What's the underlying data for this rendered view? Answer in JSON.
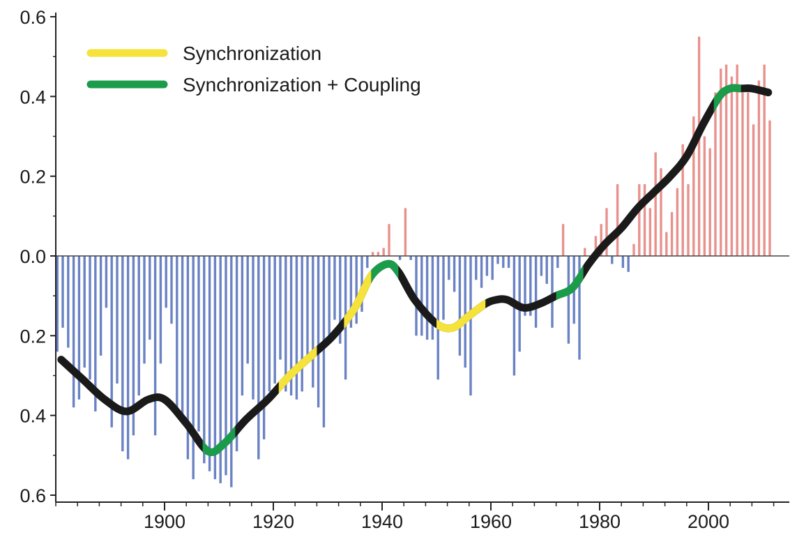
{
  "chart_data": {
    "type": "bar",
    "title": "",
    "xlabel": "",
    "ylabel": "",
    "xlim": [
      1880,
      2013
    ],
    "ylim": [
      -0.6,
      0.6
    ],
    "grid": false,
    "legend_position": "top-left",
    "x_tick_labels": [
      "1900",
      "1920",
      "1940",
      "1960",
      "1980",
      "2000"
    ],
    "y_tick_labels": [
      "0.6",
      "0.4",
      "0.2",
      "0.0",
      "0.2",
      "0.4",
      "0.6"
    ],
    "legend": [
      {
        "label": "Synchronization",
        "color": "#f5e23a"
      },
      {
        "label": "Synchronization + Coupling",
        "color": "#1a9c4a"
      }
    ],
    "colors": {
      "positive_bars": "#e8918c",
      "negative_bars": "#6a82c4",
      "smooth_curve": "#1a1a1a",
      "synchronization": "#f5e23a",
      "synchronization_coupling": "#1a9c4a"
    },
    "annual_anomalies": {
      "years": [
        1880,
        1881,
        1882,
        1883,
        1884,
        1885,
        1886,
        1887,
        1888,
        1889,
        1890,
        1891,
        1892,
        1893,
        1894,
        1895,
        1896,
        1897,
        1898,
        1899,
        1900,
        1901,
        1902,
        1903,
        1904,
        1905,
        1906,
        1907,
        1908,
        1909,
        1910,
        1911,
        1912,
        1913,
        1914,
        1915,
        1916,
        1917,
        1918,
        1919,
        1920,
        1921,
        1922,
        1923,
        1924,
        1925,
        1926,
        1927,
        1928,
        1929,
        1930,
        1931,
        1932,
        1933,
        1934,
        1935,
        1936,
        1937,
        1938,
        1939,
        1940,
        1941,
        1942,
        1943,
        1944,
        1945,
        1946,
        1947,
        1948,
        1949,
        1950,
        1951,
        1952,
        1953,
        1954,
        1955,
        1956,
        1957,
        1958,
        1959,
        1960,
        1961,
        1962,
        1963,
        1964,
        1965,
        1966,
        1967,
        1968,
        1969,
        1970,
        1971,
        1972,
        1973,
        1974,
        1975,
        1976,
        1977,
        1978,
        1979,
        1980,
        1981,
        1982,
        1983,
        1984,
        1985,
        1986,
        1987,
        1988,
        1989,
        1990,
        1991,
        1992,
        1993,
        1994,
        1995,
        1996,
        1997,
        1998,
        1999,
        2000,
        2001,
        2002,
        2003,
        2004,
        2005,
        2006,
        2007,
        2008,
        2009,
        2010,
        2011
      ],
      "values": [
        -0.24,
        -0.18,
        -0.23,
        -0.38,
        -0.36,
        -0.28,
        -0.31,
        -0.39,
        -0.25,
        -0.13,
        -0.43,
        -0.32,
        -0.49,
        -0.51,
        -0.45,
        -0.35,
        -0.27,
        -0.21,
        -0.45,
        -0.27,
        -0.13,
        -0.17,
        -0.39,
        -0.42,
        -0.51,
        -0.56,
        -0.44,
        -0.52,
        -0.54,
        -0.56,
        -0.57,
        -0.55,
        -0.58,
        -0.49,
        -0.35,
        -0.27,
        -0.36,
        -0.51,
        -0.46,
        -0.34,
        -0.32,
        -0.26,
        -0.34,
        -0.35,
        -0.36,
        -0.34,
        -0.25,
        -0.33,
        -0.38,
        -0.43,
        -0.2,
        -0.16,
        -0.22,
        -0.31,
        -0.18,
        -0.17,
        -0.14,
        -0.03,
        0.01,
        0.01,
        0.02,
        0.08,
        0.0,
        -0.01,
        0.12,
        -0.01,
        -0.2,
        -0.2,
        -0.21,
        -0.21,
        -0.31,
        -0.16,
        -0.06,
        -0.09,
        -0.25,
        -0.28,
        -0.35,
        -0.06,
        -0.08,
        -0.05,
        -0.06,
        -0.02,
        -0.03,
        -0.03,
        -0.3,
        -0.24,
        -0.15,
        -0.15,
        -0.18,
        -0.05,
        -0.07,
        -0.18,
        -0.03,
        0.08,
        -0.22,
        -0.17,
        -0.26,
        0.02,
        -0.01,
        0.05,
        0.08,
        0.12,
        -0.02,
        0.18,
        -0.03,
        -0.04,
        0.03,
        0.18,
        0.18,
        0.12,
        0.26,
        0.22,
        0.06,
        0.11,
        0.17,
        0.28,
        0.18,
        0.35,
        0.55,
        0.3,
        0.27,
        0.41,
        0.47,
        0.48,
        0.45,
        0.48,
        0.41,
        0.41,
        0.33,
        0.44,
        0.48,
        0.34
      ]
    },
    "smoothed_series": {
      "x": [
        1881,
        1885,
        1889,
        1893,
        1897,
        1900,
        1904,
        1908,
        1911,
        1915,
        1919,
        1923,
        1927,
        1931,
        1935,
        1938,
        1941,
        1943,
        1946,
        1950,
        1953,
        1956,
        1959,
        1961,
        1963,
        1966,
        1969,
        1972,
        1975,
        1978,
        1981,
        1984,
        1987,
        1990,
        1993,
        1996,
        1999,
        2002,
        2004,
        2006,
        2008,
        2011
      ],
      "y": [
        -0.26,
        -0.31,
        -0.36,
        -0.39,
        -0.36,
        -0.36,
        -0.42,
        -0.49,
        -0.47,
        -0.41,
        -0.36,
        -0.3,
        -0.25,
        -0.2,
        -0.13,
        -0.05,
        -0.02,
        -0.04,
        -0.11,
        -0.17,
        -0.18,
        -0.15,
        -0.12,
        -0.11,
        -0.11,
        -0.13,
        -0.12,
        -0.1,
        -0.08,
        -0.02,
        0.03,
        0.07,
        0.12,
        0.16,
        0.2,
        0.25,
        0.33,
        0.4,
        0.42,
        0.42,
        0.42,
        0.41
      ]
    },
    "segments": [
      {
        "type": "synchronization",
        "from": 1921,
        "to": 1928
      },
      {
        "type": "synchronization",
        "from": 1933,
        "to": 1938
      },
      {
        "type": "synchronization",
        "from": 1950,
        "to": 1959
      },
      {
        "type": "synchronization_coupling",
        "from": 1907,
        "to": 1913
      },
      {
        "type": "synchronization_coupling",
        "from": 1938,
        "to": 1943
      },
      {
        "type": "synchronization_coupling",
        "from": 1972,
        "to": 1977
      },
      {
        "type": "synchronization_coupling",
        "from": 2001,
        "to": 2006
      }
    ]
  }
}
